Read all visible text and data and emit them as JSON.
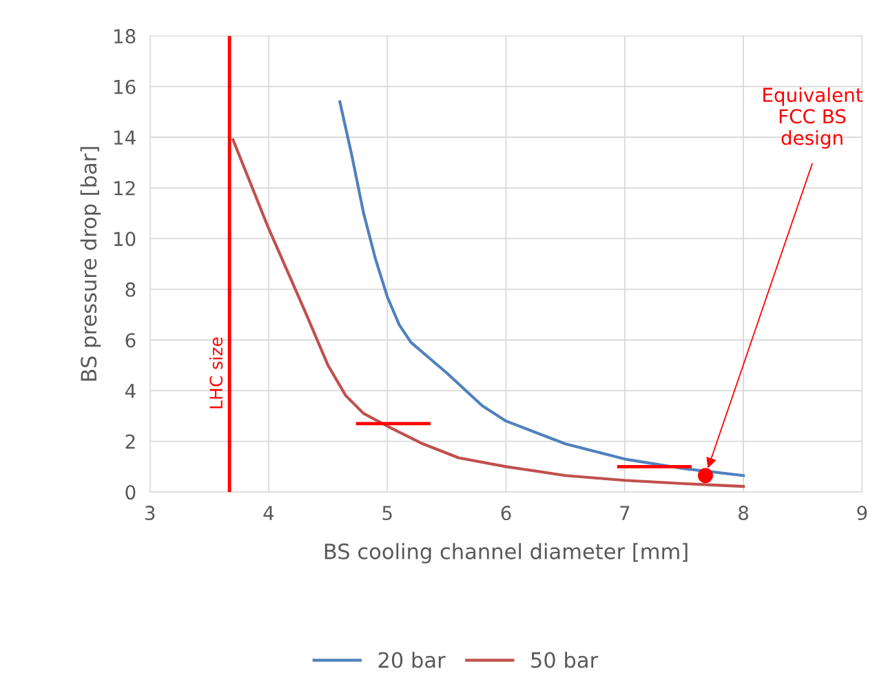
{
  "chart_data": {
    "type": "line",
    "xlabel": "BS cooling channel diameter [mm]",
    "ylabel": "BS pressure drop [bar]",
    "xlim": [
      3,
      9
    ],
    "xticks": [
      3,
      4,
      5,
      6,
      7,
      8,
      9
    ],
    "ylim": [
      0,
      18
    ],
    "yticks": [
      0,
      2,
      4,
      6,
      8,
      10,
      12,
      14,
      16,
      18
    ],
    "grid": true,
    "legend": "bottom",
    "line_style": "solid",
    "marker": "none",
    "series": [
      {
        "name": "20 bar",
        "color": "#4f81bd",
        "x": [
          4.6,
          4.7,
          4.8,
          4.9,
          5.0,
          5.1,
          5.2,
          5.35,
          5.5,
          5.8,
          6.0,
          6.5,
          7.0,
          7.5,
          8.0
        ],
        "values": [
          15.4,
          13.3,
          11.0,
          9.2,
          7.7,
          6.6,
          5.9,
          5.3,
          4.7,
          3.4,
          2.8,
          1.9,
          1.3,
          0.92,
          0.65
        ]
      },
      {
        "name": "50 bar",
        "color": "#c0504d",
        "x": [
          3.7,
          4.0,
          4.3,
          4.5,
          4.65,
          4.8,
          5.0,
          5.3,
          5.6,
          6.0,
          6.5,
          7.0,
          7.5,
          8.0
        ],
        "values": [
          13.9,
          10.4,
          7.2,
          5.0,
          3.8,
          3.1,
          2.6,
          1.9,
          1.35,
          1.0,
          0.65,
          0.46,
          0.33,
          0.22
        ]
      },
      {
        "color": "#ff0000",
        "x": [
          4.75,
          5.35
        ],
        "values": [
          2.7,
          2.7
        ]
      },
      {
        "color": "#ff0000",
        "x": [
          6.95,
          7.55
        ],
        "values": [
          1.0,
          1.0
        ]
      },
      {
        "type": "scatter",
        "color": "#ff0000",
        "x": [
          7.68
        ],
        "values": [
          0.65
        ],
        "marker": "circle"
      }
    ],
    "ref_lines": [
      {
        "axis": "x",
        "value": 3.67,
        "label": "LHC size",
        "color": "#ff0000"
      }
    ],
    "annotations": [
      "Equivalent\nFCC BS\ndesign"
    ]
  }
}
